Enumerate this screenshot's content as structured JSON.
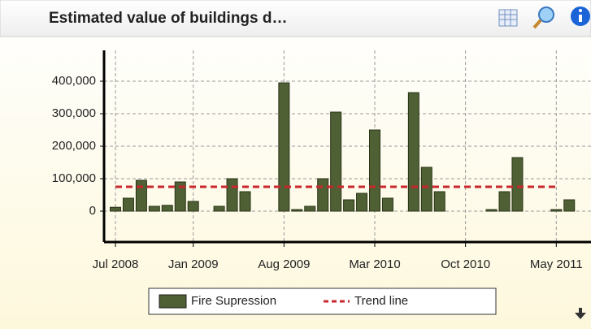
{
  "chart_data": {
    "type": "bar",
    "title": "Estimated value of buildings d…",
    "categories": [
      "Jul 2008",
      null,
      null,
      null,
      null,
      null,
      "Jan 2009",
      null,
      null,
      null,
      null,
      null,
      null,
      "Aug 2009",
      null,
      null,
      null,
      null,
      null,
      null,
      "Mar 2010",
      null,
      null,
      null,
      null,
      null,
      null,
      "Oct 2010",
      null,
      null,
      null,
      null,
      null,
      null,
      "May 2011",
      null
    ],
    "series": [
      {
        "name": "Fire Supression",
        "color": "#4f6034",
        "values": [
          12000,
          40000,
          95000,
          15000,
          18000,
          90000,
          30000,
          0,
          15000,
          100000,
          60000,
          0,
          0,
          395000,
          5000,
          15000,
          100000,
          305000,
          35000,
          55000,
          250000,
          40000,
          0,
          365000,
          135000,
          60000,
          0,
          0,
          0,
          5000,
          60000,
          165000,
          0,
          0,
          5000,
          35000
        ]
      }
    ],
    "trend": {
      "name": "Trend line",
      "value": 75000,
      "color": "#c8282d"
    },
    "ylim": [
      -95000,
      495000
    ],
    "yticks": [
      0,
      {
        "value": 100000,
        "label": "100,000"
      },
      {
        "value": 200000,
        "label": "200,000"
      },
      {
        "value": 300000,
        "label": "300,000"
      },
      {
        "value": 400000,
        "label": "400,000"
      }
    ],
    "grid": true
  }
}
